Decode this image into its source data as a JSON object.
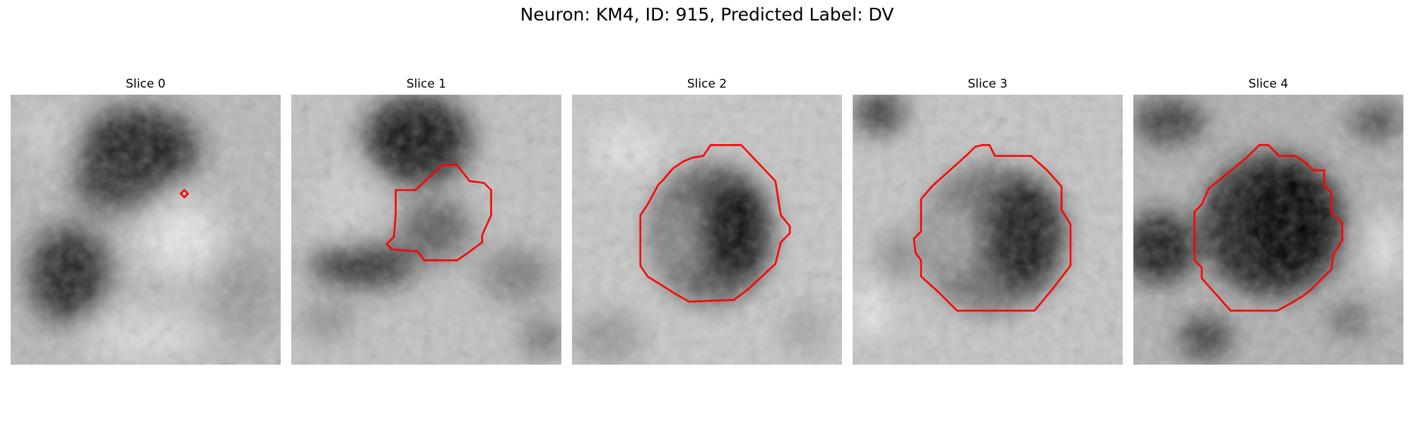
{
  "figure": {
    "title": "Neuron: KM4, ID: 915, Predicted Label: DV"
  },
  "colors": {
    "background": "#ffffff",
    "contour": "#ff0000",
    "pixel_dark": "#000000",
    "pixel_light": "#ffffff"
  },
  "slices": [
    {
      "title": "Slice 0"
    },
    {
      "title": "Slice 1"
    },
    {
      "title": "Slice 2"
    },
    {
      "title": "Slice 3"
    },
    {
      "title": "Slice 4"
    }
  ]
}
